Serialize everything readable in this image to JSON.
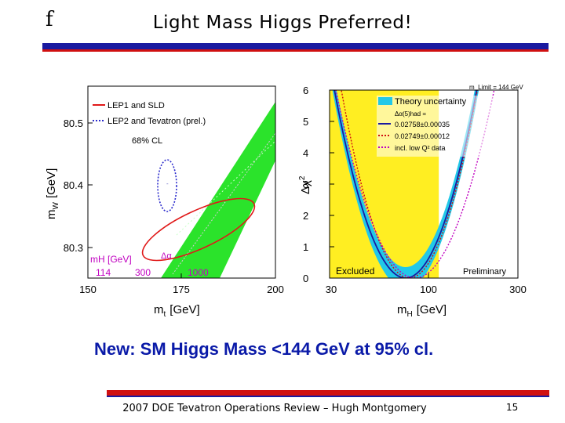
{
  "slide": {
    "corner_glyph": "f",
    "title": "Light Mass Higgs Preferred!",
    "headline": "New: SM Higgs Mass <144 GeV at 95% cl.",
    "footer": "2007 DOE Tevatron Operations Review – Hugh Montgomery",
    "page_number": "15",
    "colors": {
      "rule_blue": "#1a1aa0",
      "rule_red": "#d01010",
      "headline": "#0a1aa8"
    }
  },
  "chart_data": [
    {
      "type": "scatter",
      "description_label": "mW vs mt",
      "xlabel": "m",
      "xlabel_sub": "t",
      "xlabel_unit": "[GeV]",
      "ylabel": "m",
      "ylabel_sub": "W",
      "ylabel_unit": "[GeV]",
      "xlim": [
        150,
        200
      ],
      "ylim": [
        80.28,
        80.56
      ],
      "x_ticks": [
        "150",
        "175",
        "200"
      ],
      "y_ticks": [
        "80.3",
        "80.4",
        "80.5"
      ],
      "legend": [
        {
          "label": "LEP1 and SLD",
          "style": "solid",
          "color": "#e01818"
        },
        {
          "label": "LEP2 and Tevatron (prel.)",
          "style": "dotted",
          "color": "#2a2acc"
        },
        {
          "label": "68% CL",
          "style": "none",
          "color": "#000000"
        }
      ],
      "band_label": "mH [GeV]",
      "band_ticks": [
        "114",
        "300",
        "1000"
      ],
      "band_annotation": "Δα",
      "series": [
        {
          "name": "LEP1 and SLD",
          "shape": "ellipse",
          "center": [
            172,
            80.362
          ],
          "color": "#e01818"
        },
        {
          "name": "LEP2 and Tevatron (prel.)",
          "shape": "ellipse",
          "center": [
            170.9,
            80.398
          ],
          "color": "#2a2acc"
        }
      ]
    },
    {
      "type": "line",
      "description_label": "Δχ² vs mH",
      "top_label": "m_Limit = 144 GeV",
      "xlabel": "m",
      "xlabel_sub": "H",
      "xlabel_unit": "[GeV]",
      "ylabel": "Δχ",
      "ylabel_sup": "2",
      "xscale": "log",
      "xlim": [
        30,
        300
      ],
      "ylim": [
        0,
        6
      ],
      "x_ticks": [
        "30",
        "100",
        "300"
      ],
      "y_ticks": [
        "0",
        "1",
        "2",
        "3",
        "4",
        "5",
        "6"
      ],
      "excluded_label": "Excluded",
      "excluded_range": [
        30,
        114
      ],
      "preliminary_label": "Preliminary",
      "legend_title": "Theory uncertainty",
      "legend_delta": "Δα(5)had =",
      "legend": [
        {
          "label": "0.02758±0.00035",
          "style": "solid",
          "color": "#1a1aa0"
        },
        {
          "label": "0.02749±0.00012",
          "style": "dotted",
          "color": "#d01010"
        },
        {
          "label": "incl. low Q² data",
          "style": "dotted",
          "color": "#c000c0"
        }
      ],
      "series": [
        {
          "name": "fit",
          "minimum_x": 76,
          "points_x": [
            30,
            40,
            50,
            60,
            70,
            76,
            90,
            110,
            130,
            150,
            170
          ],
          "points_y": [
            6.3,
            3.5,
            1.9,
            0.8,
            0.1,
            0,
            0.4,
            1.7,
            3.1,
            4.5,
            5.9
          ]
        }
      ]
    }
  ]
}
